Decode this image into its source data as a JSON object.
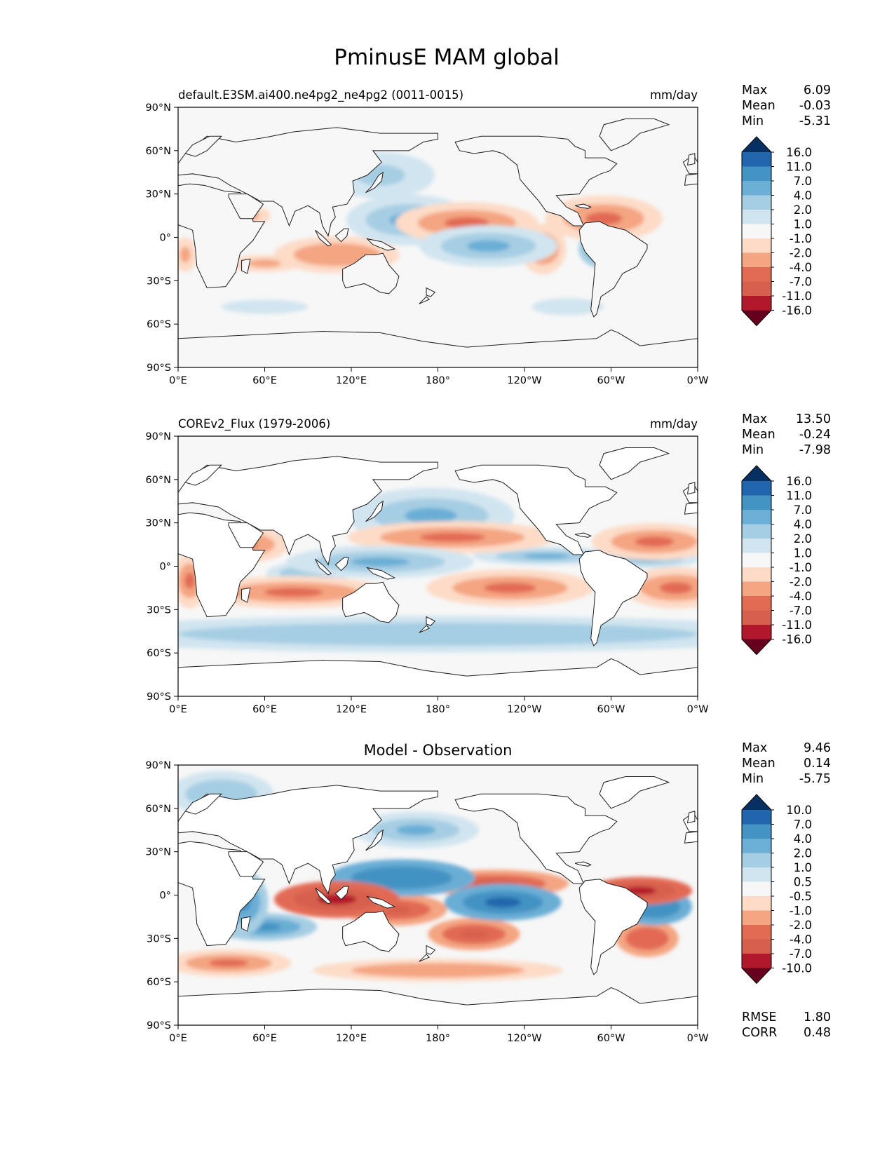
{
  "title": "PminusE MAM global",
  "lat_ticks": [
    "90°N",
    "60°N",
    "30°N",
    "0°",
    "30°S",
    "60°S",
    "90°S"
  ],
  "lon_ticks": [
    "0°E",
    "60°E",
    "120°E",
    "180°",
    "120°W",
    "60°W",
    "0°W"
  ],
  "palette_main": [
    "#053061",
    "#2166ac",
    "#4393c3",
    "#6baed6",
    "#a6cee3",
    "#d1e5f0",
    "#f7f7f7",
    "#fddbc7",
    "#f4a582",
    "#e26b54",
    "#d6604d",
    "#b2182b",
    "#67001f"
  ],
  "panels": [
    {
      "id": "model",
      "name": "default.E3SM.ai400.ne4pg2_ne4pg2 (0011-0015)",
      "title": "",
      "units": "mm/day",
      "stats": {
        "labels": [
          "Max",
          "Mean",
          "Min"
        ],
        "values": [
          "6.09",
          "-0.03",
          "-5.31"
        ]
      },
      "levels": [
        "16.0",
        "11.0",
        "7.0",
        "4.0",
        "2.0",
        "1.0",
        "-1.0",
        "-2.0",
        "-4.0",
        "-7.0",
        "-11.0",
        "-16.0"
      ],
      "blobs": [
        {
          "lon": 140,
          "lat": 43,
          "rx": 38,
          "ry": 16,
          "v": 1.6
        },
        {
          "lon": 160,
          "lat": 12,
          "rx": 30,
          "ry": 11,
          "v": 2.6
        },
        {
          "lon": 215,
          "lat": -6,
          "rx": 33,
          "ry": 9,
          "v": 3.6
        },
        {
          "lon": 292,
          "lat": -8,
          "rx": 10,
          "ry": 8,
          "v": 4.4
        },
        {
          "lon": 25,
          "lat": 0,
          "rx": 14,
          "ry": 10,
          "v": 1.4
        },
        {
          "lon": 200,
          "lat": 10,
          "rx": 34,
          "ry": 9,
          "v": -2.6
        },
        {
          "lon": 295,
          "lat": 13,
          "rx": 28,
          "ry": 10,
          "v": -2.8
        },
        {
          "lon": 110,
          "lat": -12,
          "rx": 30,
          "ry": 8,
          "v": -2.4
        },
        {
          "lon": 253,
          "lat": -8,
          "rx": 11,
          "ry": 11,
          "v": -2.2
        },
        {
          "lon": 60,
          "lat": -18,
          "rx": 26,
          "ry": 6,
          "v": -1.4
        },
        {
          "lon": 5,
          "lat": -12,
          "rx": 8,
          "ry": 12,
          "v": -1.7
        },
        {
          "lon": 50,
          "lat": 15,
          "rx": 14,
          "ry": 7,
          "v": -1.3
        },
        {
          "lon": 60,
          "lat": -48,
          "rx": 30,
          "ry": 5,
          "v": 1.1
        },
        {
          "lon": 270,
          "lat": -48,
          "rx": 25,
          "ry": 6,
          "v": 1.2
        }
      ]
    },
    {
      "id": "obs",
      "name": "COREv2_Flux (1979-2006)",
      "title": "",
      "units": "mm/day",
      "stats": {
        "labels": [
          "Max",
          "Mean",
          "Min"
        ],
        "values": [
          "13.50",
          "-0.24",
          "-7.98"
        ]
      },
      "levels": [
        "16.0",
        "11.0",
        "7.0",
        "4.0",
        "2.0",
        "1.0",
        "-1.0",
        "-2.0",
        "-4.0",
        "-7.0",
        "-11.0",
        "-16.0"
      ],
      "blobs": [
        {
          "lon": 175,
          "lat": 35,
          "rx": 40,
          "ry": 12,
          "v": 2.5
        },
        {
          "lon": 140,
          "lat": 3,
          "rx": 45,
          "ry": 7,
          "v": 3.8
        },
        {
          "lon": 255,
          "lat": 7,
          "rx": 35,
          "ry": 4,
          "v": 3.2
        },
        {
          "lon": 325,
          "lat": 5,
          "rx": 25,
          "ry": 4,
          "v": 3.0
        },
        {
          "lon": 90,
          "lat": -5,
          "rx": 20,
          "ry": 5,
          "v": 2.4
        },
        {
          "lon": 180,
          "lat": -47,
          "rx": 180,
          "ry": 8,
          "v": 2.4
        },
        {
          "lon": 190,
          "lat": 20,
          "rx": 50,
          "ry": 7,
          "v": -3.4
        },
        {
          "lon": 230,
          "lat": -15,
          "rx": 40,
          "ry": 8,
          "v": -3.6
        },
        {
          "lon": 330,
          "lat": 17,
          "rx": 30,
          "ry": 8,
          "v": -3.4
        },
        {
          "lon": 345,
          "lat": -15,
          "rx": 25,
          "ry": 9,
          "v": -3.8
        },
        {
          "lon": 80,
          "lat": -18,
          "rx": 45,
          "ry": 7,
          "v": -2.8
        },
        {
          "lon": 45,
          "lat": 15,
          "rx": 22,
          "ry": 8,
          "v": -3.2
        },
        {
          "lon": 8,
          "lat": -10,
          "rx": 8,
          "ry": 12,
          "v": -2.6
        }
      ]
    },
    {
      "id": "diff",
      "name": "",
      "title": "Model - Observation",
      "units": "",
      "stats": {
        "labels": [
          "Max",
          "Mean",
          "Min"
        ],
        "values": [
          "9.46",
          "0.14",
          "-5.75"
        ]
      },
      "levels": [
        "10.0",
        "7.0",
        "4.0",
        "2.0",
        "1.0",
        "0.5",
        "-0.5",
        "-1.0",
        "-2.0",
        "-4.0",
        "-7.0",
        "-10.0"
      ],
      "rmse_corr": {
        "labels": [
          "RMSE",
          "CORR"
        ],
        "values": [
          "1.80",
          "0.48"
        ]
      },
      "blobs": [
        {
          "lon": 155,
          "lat": 12,
          "rx": 35,
          "ry": 8,
          "v": 4.0
        },
        {
          "lon": 225,
          "lat": -5,
          "rx": 28,
          "ry": 8,
          "v": 5.5
        },
        {
          "lon": 330,
          "lat": -8,
          "rx": 18,
          "ry": 8,
          "v": 4.2
        },
        {
          "lon": 45,
          "lat": -5,
          "rx": 12,
          "ry": 14,
          "v": 3.5
        },
        {
          "lon": 60,
          "lat": -22,
          "rx": 25,
          "ry": 6,
          "v": 2.5
        },
        {
          "lon": 110,
          "lat": -3,
          "rx": 30,
          "ry": 8,
          "v": -4.8
        },
        {
          "lon": 150,
          "lat": -10,
          "rx": 25,
          "ry": 7,
          "v": -3.5
        },
        {
          "lon": 220,
          "lat": 8,
          "rx": 35,
          "ry": 6,
          "v": -3.8
        },
        {
          "lon": 320,
          "lat": 3,
          "rx": 25,
          "ry": 6,
          "v": -4.5
        },
        {
          "lon": 205,
          "lat": -27,
          "rx": 22,
          "ry": 7,
          "v": -3.0
        },
        {
          "lon": 325,
          "lat": -30,
          "rx": 15,
          "ry": 8,
          "v": -2.2
        },
        {
          "lon": 35,
          "lat": -47,
          "rx": 30,
          "ry": 6,
          "v": -1.5
        },
        {
          "lon": 180,
          "lat": -52,
          "rx": 60,
          "ry": 5,
          "v": -1.2
        },
        {
          "lon": 165,
          "lat": 45,
          "rx": 30,
          "ry": 8,
          "v": 1.3
        },
        {
          "lon": 30,
          "lat": 70,
          "rx": 25,
          "ry": 10,
          "v": 1.2
        }
      ]
    }
  ]
}
